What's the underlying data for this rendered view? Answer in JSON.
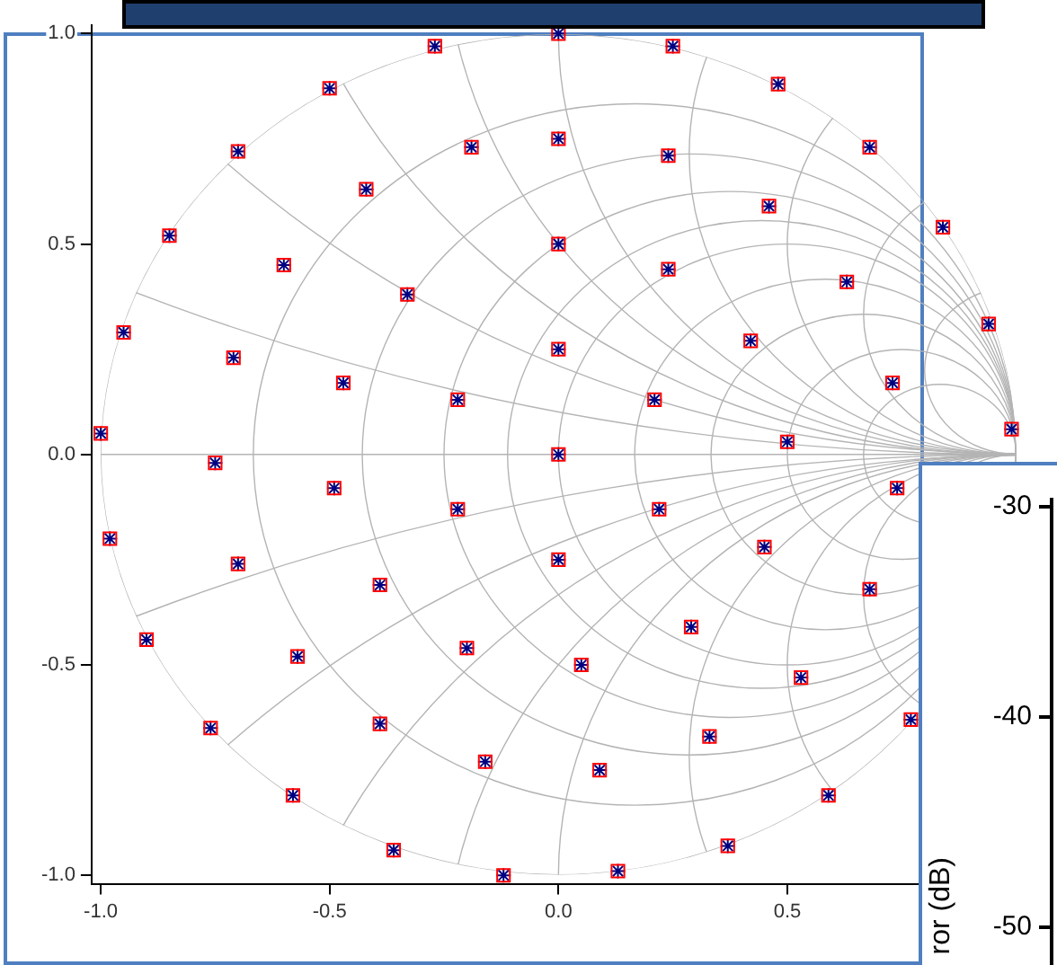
{
  "chart_data": [
    {
      "type": "scatter",
      "grid": true,
      "legend": false,
      "x": [
        0.0,
        0.25,
        0.48,
        0.68,
        0.84,
        0.94,
        0.99,
        -0.27,
        -0.5,
        -0.7,
        -0.85,
        -0.95,
        -1.0,
        -0.98,
        -0.9,
        -0.76,
        -0.58,
        -0.36,
        -0.12,
        0.13,
        0.37,
        0.59,
        0.77,
        -0.19,
        0.0,
        -0.42,
        0.0,
        -0.6,
        -0.33,
        0.0,
        -0.71,
        -0.47,
        -0.22,
        0.0,
        -0.75,
        0.24,
        0.46,
        0.24,
        0.63,
        0.42,
        0.73,
        0.21,
        0.5,
        0.74,
        0.22,
        0.0,
        0.45,
        0.68,
        0.29,
        0.05,
        0.53,
        0.33,
        0.09,
        -0.49,
        -0.22,
        -0.7,
        -0.39,
        -0.57,
        -0.2,
        -0.39,
        -0.16
      ],
      "series": [
        {
          "color": "#ff0000",
          "marker": "square",
          "values": [
            1.0,
            0.97,
            0.88,
            0.73,
            0.54,
            0.31,
            0.06,
            0.97,
            0.87,
            0.72,
            0.52,
            0.29,
            0.05,
            -0.2,
            -0.44,
            -0.65,
            -0.81,
            -0.94,
            -1.0,
            -0.99,
            -0.93,
            -0.81,
            -0.63,
            0.73,
            0.75,
            0.63,
            0.5,
            0.45,
            0.38,
            0.25,
            0.23,
            0.17,
            0.13,
            0.0,
            -0.02,
            0.71,
            0.59,
            0.44,
            0.41,
            0.27,
            0.17,
            0.13,
            0.03,
            -0.08,
            -0.13,
            -0.25,
            -0.22,
            -0.32,
            -0.41,
            -0.5,
            -0.53,
            -0.67,
            -0.75,
            -0.08,
            -0.13,
            -0.26,
            -0.31,
            -0.48,
            -0.46,
            -0.64,
            -0.73
          ]
        },
        {
          "color": "#000080",
          "marker": "cross",
          "values": [
            1.0,
            0.97,
            0.88,
            0.73,
            0.54,
            0.31,
            0.06,
            0.97,
            0.87,
            0.72,
            0.52,
            0.29,
            0.05,
            -0.2,
            -0.44,
            -0.65,
            -0.81,
            -0.94,
            -1.0,
            -0.99,
            -0.93,
            -0.81,
            -0.63,
            0.73,
            0.75,
            0.63,
            0.5,
            0.45,
            0.38,
            0.25,
            0.23,
            0.17,
            0.13,
            0.0,
            -0.02,
            0.71,
            0.59,
            0.44,
            0.41,
            0.27,
            0.17,
            0.13,
            0.03,
            -0.08,
            -0.13,
            -0.25,
            -0.22,
            -0.32,
            -0.41,
            -0.5,
            -0.53,
            -0.67,
            -0.75,
            -0.08,
            -0.13,
            -0.26,
            -0.31,
            -0.48,
            -0.46,
            -0.64,
            -0.73
          ]
        }
      ],
      "xlim": [
        -1.02,
        1.05
      ],
      "ylim": [
        -1.02,
        1.02
      ],
      "xticks": [
        {
          "value": -1,
          "label": "-1.0"
        },
        {
          "value": -0.5,
          "label": "-0.5"
        },
        {
          "value": 0,
          "label": "0.0"
        },
        {
          "value": 0.5,
          "label": "0.5"
        }
      ],
      "yticks": [
        {
          "value": -1,
          "label": "-1.0"
        },
        {
          "value": -0.5,
          "label": "-0.5"
        },
        {
          "value": 0,
          "label": "0.0"
        },
        {
          "value": 0.5,
          "label": "0.5"
        },
        {
          "value": 1,
          "label": "1.0"
        }
      ]
    },
    {
      "type": "other",
      "ylabel": "ror (dB)",
      "annotations": [
        "-30",
        "-40",
        "-50"
      ]
    }
  ]
}
